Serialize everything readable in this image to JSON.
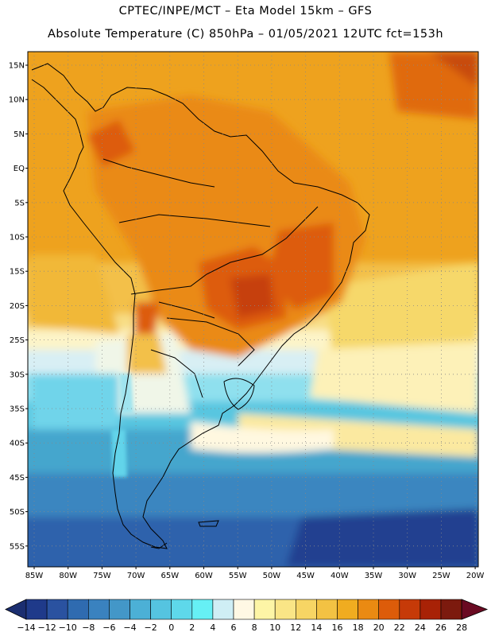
{
  "header": {
    "line1": "CPTEC/INPE/MCT –  Eta Model 15km – GFS",
    "line2": "Absolute Temperature (C) 850hPa – 01/05/2021 12UTC fct=153h"
  },
  "map": {
    "lat_labels": [
      "15N",
      "10N",
      "5N",
      "EQ",
      "5S",
      "10S",
      "15S",
      "20S",
      "25S",
      "30S",
      "35S",
      "40S",
      "45S",
      "50S",
      "55S"
    ],
    "lon_labels": [
      "85W",
      "80W",
      "75W",
      "70W",
      "65W",
      "60W",
      "55W",
      "50W",
      "45W",
      "40W",
      "35W",
      "30W",
      "25W",
      "20W"
    ]
  },
  "colorbar": {
    "labels": [
      "-14",
      "-12",
      "-10",
      "-8",
      "-6",
      "-4",
      "-2",
      "0",
      "2",
      "4",
      "6",
      "8",
      "10",
      "12",
      "14",
      "16",
      "18",
      "20",
      "22",
      "24",
      "26",
      "28"
    ],
    "colors": [
      "#1f3a8a",
      "#2a52a0",
      "#2f6bb0",
      "#3a82bf",
      "#4397c8",
      "#4cb0d6",
      "#55c4e0",
      "#5ed8ea",
      "#66f0f5",
      "#cfeef5",
      "#fff8e4",
      "#fdf5a6",
      "#fae586",
      "#f7d564",
      "#f3c243",
      "#f0ac20",
      "#ea8a12",
      "#dd5c0a",
      "#c63a08",
      "#a82206",
      "#7c1a0e"
    ],
    "low_cap_color": "#1b2e70",
    "high_cap_color": "#6a0a22"
  }
}
